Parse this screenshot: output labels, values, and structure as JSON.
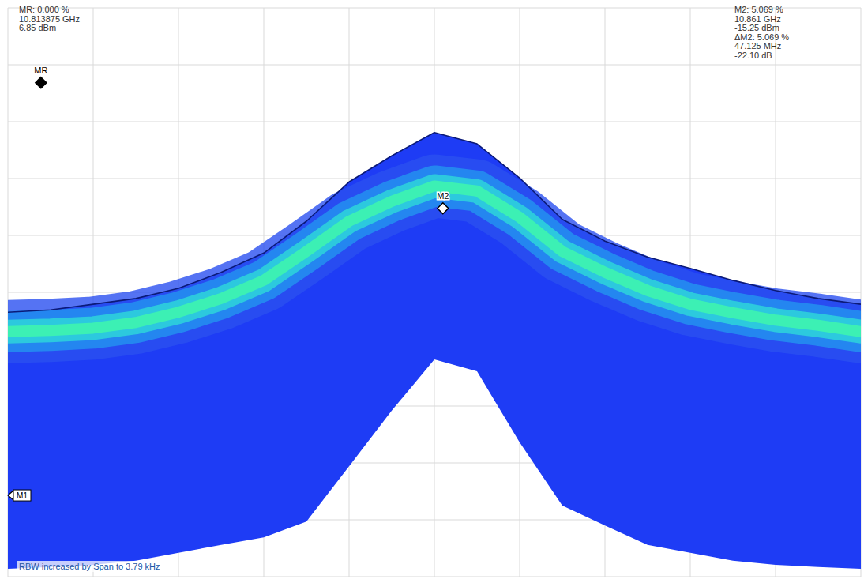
{
  "chart_data": {
    "type": "line",
    "x": [
      10.81,
      10.815,
      10.82,
      10.825,
      10.83,
      10.835,
      10.84,
      10.845,
      10.85,
      10.855,
      10.86,
      10.865,
      10.87,
      10.875,
      10.88,
      10.885,
      10.89,
      10.895,
      10.9,
      10.905,
      10.91
    ],
    "series": [
      {
        "type": "line",
        "color": "#0b1a78",
        "values": [
          -33.5,
          -33.1,
          -32.1,
          -31.1,
          -29.3,
          -26.5,
          -23.1,
          -17.5,
          -10.6,
          -6.0,
          -1.9,
          -3.9,
          -9.9,
          -17.2,
          -21.0,
          -23.8,
          -25.8,
          -27.9,
          -29.7,
          -31.1,
          -32.1
        ]
      },
      {
        "type": "band",
        "color": "#3cf0b4",
        "values": [
          -36.9,
          -36.7,
          -36.3,
          -35.3,
          -33.5,
          -31.1,
          -27.9,
          -22.8,
          -17.5,
          -14.0,
          -11.3,
          -12.2,
          -16.8,
          -22.8,
          -26.5,
          -29.7,
          -32.1,
          -33.6,
          -34.9,
          -35.8,
          -36.9
        ]
      },
      {
        "type": "area",
        "color": "#1e3cf5",
        "values": [
          -78.6,
          -78.3,
          -77.9,
          -77.2,
          -75.8,
          -74.4,
          -73.1,
          -70.3,
          -60.6,
          -50.8,
          -41.8,
          -43.9,
          -56.4,
          -67.5,
          -71.0,
          -74.4,
          -75.8,
          -77.2,
          -77.9,
          -78.3,
          -78.6
        ]
      }
    ],
    "xlim": [
      10.81,
      10.91
    ],
    "xticks": [
      10.81,
      10.82,
      10.83,
      10.84,
      10.85,
      10.86,
      10.87,
      10.88,
      10.89,
      10.9,
      10.91
    ],
    "ylim": [
      -80,
      20
    ],
    "yticks": [
      -80,
      -70,
      -60,
      -50,
      -40,
      -30,
      -20,
      -10,
      0,
      10,
      20
    ],
    "grid": true,
    "tick_labels": false,
    "markers": [
      {
        "label": "MR",
        "x": 10.813875,
        "y": 6.85,
        "readout": [
          "MR: 0.000 %",
          "10.813875 GHz",
          "6.85 dBm"
        ]
      },
      {
        "label": "M2",
        "x": 10.861,
        "y": -15.25,
        "readout": [
          "M2: 5.069 %",
          "10.861 GHz",
          "-15.25 dBm",
          "ΔM2: 5.069 %",
          "47.125 MHz",
          "-22.10 dB"
        ]
      },
      {
        "label": "M1",
        "y": -65.7
      }
    ],
    "annotations": [
      "RBW increased by Span to 3.79 kHz"
    ]
  }
}
